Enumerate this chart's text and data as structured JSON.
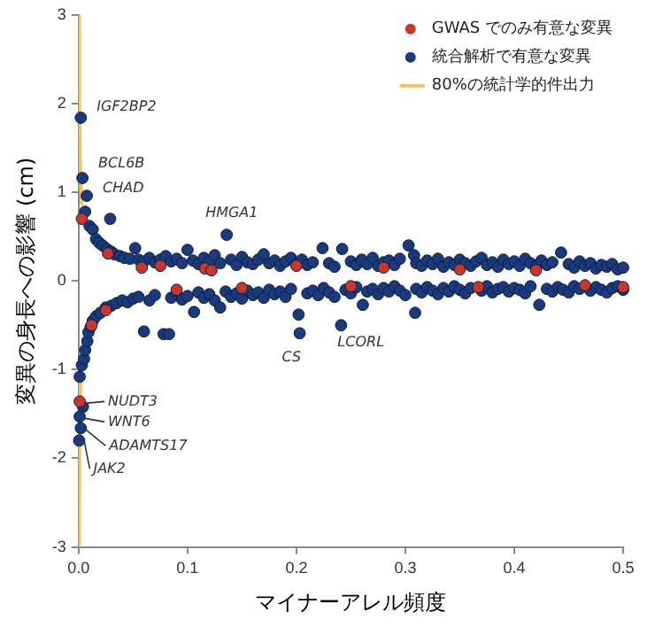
{
  "chart_data": {
    "type": "scatter",
    "xlabel": "マイナーアレル頻度",
    "ylabel": "変異の身長への影響 (cm)",
    "xlim": [
      0,
      0.5
    ],
    "ylim": [
      -3,
      3
    ],
    "xticks": [
      {
        "value": 0,
        "label": "0.0"
      },
      0.1,
      0.2,
      0.3,
      0.4,
      0.5
    ],
    "yticks": [
      -3,
      -2,
      -1,
      0,
      1,
      2,
      3
    ],
    "grid": false,
    "legend": "top right",
    "marker": "circle",
    "series": [
      {
        "type": "line",
        "name": "80%の統計学的件出力",
        "color": "#f6c15c",
        "line_style": "solid",
        "marker": "none",
        "x": [
          0.0003,
          0.0006,
          0.0015,
          0.003,
          null,
          0.005,
          0.0015,
          0.0006,
          0.0003
        ],
        "values": [
          3,
          2,
          1.2,
          0.85,
          null,
          -0.7,
          -1.2,
          -2,
          -3
        ]
      },
      {
        "name": "GWAS でのみ有意な変異",
        "color": "#c8372d",
        "x": [
          0.003,
          0.027,
          0.058,
          0.075,
          0.116,
          0.122,
          0.2,
          0.28,
          0.35,
          0.42,
          0.001,
          0.025,
          0.012,
          0.09,
          0.15,
          0.25,
          0.367,
          0.465,
          0.5
        ],
        "values": [
          0.7,
          0.31,
          0.15,
          0.17,
          0.14,
          0.12,
          0.17,
          0.15,
          0.13,
          0.12,
          -1.36,
          -0.33,
          -0.5,
          -0.1,
          -0.08,
          -0.06,
          -0.07,
          -0.05,
          -0.07
        ]
      },
      {
        "name": "統合解析で有意な変異",
        "color": "#1b3a7c",
        "x": [
          0.002,
          0.0035,
          0.0075,
          0.006,
          0.029,
          0.136,
          0.01,
          0.013,
          0.016,
          0.019,
          0.022,
          0.026,
          0.03,
          0.033,
          0.038,
          0.042,
          0.047,
          0.052,
          0.055,
          0.06,
          0.065,
          0.07,
          0.075,
          0.08,
          0.085,
          0.09,
          0.095,
          0.1,
          0.105,
          0.11,
          0.115,
          0.12,
          0.125,
          0.13,
          0.14,
          0.145,
          0.15,
          0.155,
          0.16,
          0.165,
          0.17,
          0.175,
          0.18,
          0.185,
          0.19,
          0.195,
          0.2,
          0.205,
          0.21,
          0.215,
          0.224,
          0.23,
          0.235,
          0.242,
          0.25,
          0.255,
          0.26,
          0.265,
          0.27,
          0.275,
          0.28,
          0.285,
          0.29,
          0.295,
          0.303,
          0.308,
          0.31,
          0.315,
          0.32,
          0.325,
          0.33,
          0.335,
          0.34,
          0.345,
          0.35,
          0.355,
          0.36,
          0.365,
          0.37,
          0.375,
          0.38,
          0.385,
          0.39,
          0.395,
          0.4,
          0.405,
          0.41,
          0.415,
          0.42,
          0.425,
          0.43,
          0.435,
          0.443,
          0.45,
          0.455,
          0.46,
          0.465,
          0.47,
          0.475,
          0.48,
          0.485,
          0.49,
          0.495,
          0.5,
          0.001,
          0.004,
          0.001,
          0.002,
          0.0005,
          0.003,
          0.005,
          0.006,
          0.008,
          0.009,
          0.011,
          0.013,
          0.016,
          0.02,
          0.025,
          0.03,
          0.035,
          0.04,
          0.045,
          0.05,
          0.055,
          0.06,
          0.065,
          0.07,
          0.078,
          0.083,
          0.085,
          0.09,
          0.095,
          0.1,
          0.106,
          0.11,
          0.115,
          0.12,
          0.125,
          0.13,
          0.135,
          0.14,
          0.145,
          0.15,
          0.155,
          0.16,
          0.165,
          0.17,
          0.175,
          0.18,
          0.185,
          0.19,
          0.195,
          0.202,
          0.203,
          0.21,
          0.215,
          0.22,
          0.225,
          0.23,
          0.235,
          0.241,
          0.245,
          0.25,
          0.255,
          0.261,
          0.265,
          0.27,
          0.275,
          0.28,
          0.285,
          0.29,
          0.295,
          0.3,
          0.309,
          0.31,
          0.315,
          0.32,
          0.325,
          0.33,
          0.335,
          0.34,
          0.345,
          0.35,
          0.355,
          0.36,
          0.37,
          0.375,
          0.38,
          0.385,
          0.39,
          0.395,
          0.4,
          0.405,
          0.41,
          0.415,
          0.423,
          0.43,
          0.435,
          0.44,
          0.445,
          0.45,
          0.455,
          0.46,
          0.47,
          0.475,
          0.48,
          0.485,
          0.49,
          0.495,
          0.5
        ],
        "values": [
          1.84,
          1.16,
          0.96,
          0.78,
          0.7,
          0.52,
          0.62,
          0.58,
          0.47,
          0.43,
          0.4,
          0.36,
          0.33,
          0.3,
          0.28,
          0.26,
          0.25,
          0.37,
          0.24,
          0.22,
          0.26,
          0.21,
          0.24,
          0.28,
          0.22,
          0.25,
          0.2,
          0.35,
          0.23,
          0.19,
          0.26,
          0.22,
          0.29,
          0.2,
          0.24,
          0.18,
          0.27,
          0.21,
          0.19,
          0.24,
          0.3,
          0.2,
          0.23,
          0.17,
          0.22,
          0.26,
          0.19,
          0.24,
          0.18,
          0.21,
          0.37,
          0.2,
          0.16,
          0.36,
          0.22,
          0.18,
          0.24,
          0.19,
          0.26,
          0.17,
          0.21,
          0.23,
          0.18,
          0.25,
          0.4,
          0.29,
          0.2,
          0.17,
          0.23,
          0.19,
          0.25,
          0.16,
          0.21,
          0.18,
          0.24,
          0.2,
          0.17,
          0.22,
          0.26,
          0.18,
          0.21,
          0.16,
          0.24,
          0.19,
          0.22,
          0.17,
          0.25,
          0.2,
          0.16,
          0.23,
          0.18,
          0.21,
          0.32,
          0.19,
          0.15,
          0.22,
          0.17,
          0.2,
          0.14,
          0.18,
          0.16,
          0.19,
          0.13,
          0.15,
          -1.08,
          -1.42,
          -1.53,
          -1.66,
          -1.8,
          -0.95,
          -0.88,
          -0.78,
          -0.68,
          -0.58,
          -0.52,
          -0.45,
          -0.4,
          -0.36,
          -0.3,
          -0.28,
          -0.25,
          -0.22,
          -0.24,
          -0.2,
          -0.18,
          -0.57,
          -0.22,
          -0.16,
          -0.6,
          -0.6,
          -0.19,
          -0.14,
          -0.21,
          -0.17,
          -0.35,
          -0.13,
          -0.19,
          -0.15,
          -0.22,
          -0.3,
          -0.12,
          -0.18,
          -0.14,
          -0.2,
          -0.11,
          -0.16,
          -0.13,
          -0.19,
          -0.1,
          -0.15,
          -0.12,
          -0.18,
          -0.09,
          -0.38,
          -0.59,
          -0.14,
          -0.11,
          -0.16,
          -0.08,
          -0.13,
          -0.18,
          -0.5,
          -0.1,
          -0.14,
          -0.07,
          -0.27,
          -0.12,
          -0.09,
          -0.15,
          -0.08,
          -0.12,
          -0.06,
          -0.11,
          -0.16,
          -0.36,
          -0.09,
          -0.13,
          -0.07,
          -0.11,
          -0.15,
          -0.08,
          -0.12,
          -0.06,
          -0.1,
          -0.14,
          -0.08,
          -0.11,
          -0.06,
          -0.13,
          -0.09,
          -0.07,
          -0.12,
          -0.08,
          -0.1,
          -0.14,
          -0.06,
          -0.27,
          -0.09,
          -0.12,
          -0.07,
          -0.1,
          -0.13,
          -0.06,
          -0.09,
          -0.11,
          -0.07,
          -0.1,
          -0.13,
          -0.08,
          -0.06,
          -0.1
        ]
      }
    ],
    "annotations": [
      {
        "text": "IGF2BP2",
        "x": 0.002,
        "y": 1.84
      },
      {
        "text": "BCL6B",
        "x": 0.0035,
        "y": 1.16
      },
      {
        "text": "CHAD",
        "x": 0.0075,
        "y": 0.96
      },
      {
        "text": "HMGA1",
        "x": 0.136,
        "y": 0.52
      },
      {
        "text": "NUDT3",
        "x": 0.001,
        "y": -1.36
      },
      {
        "text": "WNT6",
        "x": 0.001,
        "y": -1.53
      },
      {
        "text": "ADAMTS17",
        "x": 0.002,
        "y": -1.66
      },
      {
        "text": "JAK2",
        "x": 0.0005,
        "y": -1.8
      },
      {
        "text": "CS",
        "x": 0.203,
        "y": -0.59
      },
      {
        "text": "LCORL",
        "x": 0.241,
        "y": -0.5
      }
    ]
  }
}
